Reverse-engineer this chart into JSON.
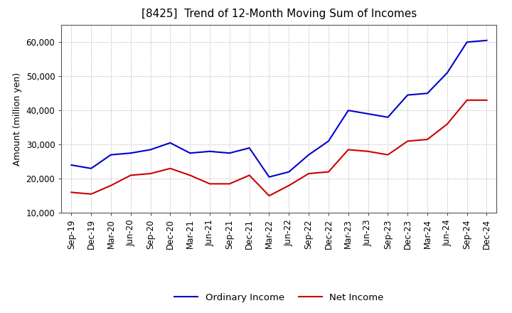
{
  "title": "[8425]  Trend of 12-Month Moving Sum of Incomes",
  "ylabel": "Amount (million yen)",
  "xlabels": [
    "Sep-19",
    "Dec-19",
    "Mar-20",
    "Jun-20",
    "Sep-20",
    "Dec-20",
    "Mar-21",
    "Jun-21",
    "Sep-21",
    "Dec-21",
    "Mar-22",
    "Jun-22",
    "Sep-22",
    "Dec-22",
    "Mar-23",
    "Jun-23",
    "Sep-23",
    "Dec-23",
    "Mar-24",
    "Jun-24",
    "Sep-24",
    "Dec-24"
  ],
  "ordinary_income": [
    24000,
    23000,
    27000,
    27500,
    28500,
    30500,
    27500,
    28000,
    27500,
    29000,
    20500,
    22000,
    27000,
    31000,
    40000,
    39000,
    38000,
    44500,
    45000,
    51000,
    60000,
    60500
  ],
  "net_income": [
    16000,
    15500,
    18000,
    21000,
    21500,
    23000,
    21000,
    18500,
    18500,
    21000,
    15000,
    18000,
    21500,
    22000,
    28500,
    28000,
    27000,
    31000,
    31500,
    36000,
    43000,
    43000
  ],
  "ordinary_color": "#0000cc",
  "net_color": "#cc0000",
  "line_width": 1.5,
  "ylim": [
    10000,
    65000
  ],
  "yticks": [
    10000,
    20000,
    30000,
    40000,
    50000,
    60000
  ],
  "ytick_labels": [
    "10,000",
    "20,000",
    "30,000",
    "40,000",
    "50,000",
    "60,000"
  ],
  "background_color": "#ffffff",
  "grid_color": "#aaaaaa",
  "legend_ordinary": "Ordinary Income",
  "legend_net": "Net Income",
  "title_fontsize": 11,
  "axis_fontsize": 9,
  "tick_fontsize": 8.5
}
